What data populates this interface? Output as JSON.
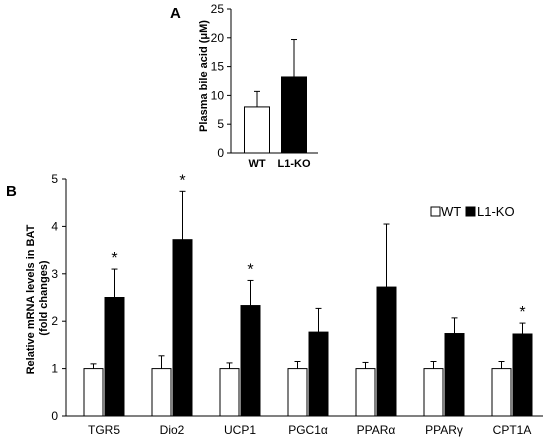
{
  "chart_data": [
    {
      "panel": "A",
      "type": "bar",
      "categories": [
        "WT",
        "L1-KO"
      ],
      "values": [
        8,
        13.2
      ],
      "errors": [
        2.7,
        6.5
      ],
      "fills": [
        "#ffffff",
        "#000000"
      ],
      "ylabel": "Plasma bile acid (μM)",
      "ylim": [
        0,
        25
      ],
      "yticks": [
        "0",
        "5",
        "10",
        "15",
        "20",
        "25"
      ]
    },
    {
      "panel": "B",
      "type": "bar",
      "categories": [
        "TGR5",
        "Dio2",
        "UCP1",
        "PGC1α",
        "PPARα",
        "PPARγ",
        "CPT1A"
      ],
      "series": [
        {
          "name": "WT",
          "color": "#ffffff",
          "values": [
            1,
            1,
            1,
            1,
            1,
            1,
            1
          ],
          "errors": [
            0.1,
            0.27,
            0.12,
            0.15,
            0.13,
            0.15,
            0.15
          ]
        },
        {
          "name": "L1-KO",
          "color": "#000000",
          "values": [
            2.5,
            3.72,
            2.33,
            1.77,
            2.72,
            1.74,
            1.73
          ],
          "errors": [
            0.6,
            1.02,
            0.53,
            0.5,
            1.33,
            0.33,
            0.23
          ]
        }
      ],
      "significant": [
        true,
        true,
        true,
        false,
        false,
        false,
        true
      ],
      "sig_marker": "*",
      "ylabel_lines": [
        "Relative mRNA levels in BAT",
        "(fold changes)"
      ],
      "ylim": [
        0,
        5
      ],
      "yticks": [
        "0",
        "1",
        "2",
        "3",
        "4",
        "5"
      ],
      "legend_position": "top-right"
    }
  ]
}
